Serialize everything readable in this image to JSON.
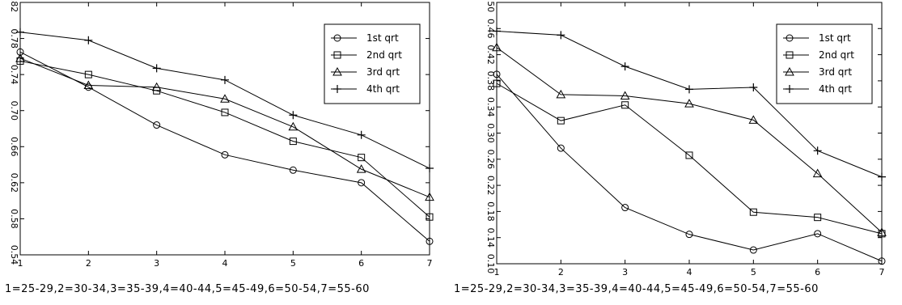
{
  "chart_data": [
    {
      "type": "line",
      "x": [
        1,
        2,
        3,
        4,
        5,
        6,
        7
      ],
      "xlim": [
        1,
        7
      ],
      "ylim": [
        0.54,
        0.82
      ],
      "yticks": [
        "0.54",
        "0.58",
        "0.62",
        "0.66",
        "0.70",
        "0.74",
        "0.78",
        "0.82"
      ],
      "xticks": [
        "1",
        "2",
        "3",
        "4",
        "5",
        "6",
        "7"
      ],
      "xlabel": "1=25-29,2=30-34,3=35-39,4=40-44,5=45-49,6=50-54,7=55-60",
      "legend_position": "top-right",
      "series": [
        {
          "name": "1st qrt",
          "marker": "circle",
          "values": [
            0.765,
            0.726,
            0.684,
            0.651,
            0.634,
            0.62,
            0.555
          ]
        },
        {
          "name": "2nd qrt",
          "marker": "square",
          "values": [
            0.755,
            0.74,
            0.722,
            0.698,
            0.666,
            0.648,
            0.582
          ]
        },
        {
          "name": "3rd qrt",
          "marker": "triangle",
          "values": [
            0.758,
            0.728,
            0.726,
            0.713,
            0.682,
            0.635,
            0.604
          ]
        },
        {
          "name": "4th qrt",
          "marker": "plus",
          "values": [
            0.787,
            0.778,
            0.747,
            0.734,
            0.695,
            0.673,
            0.636
          ]
        }
      ]
    },
    {
      "type": "line",
      "x": [
        1,
        2,
        3,
        4,
        5,
        6,
        7
      ],
      "xlim": [
        1,
        7
      ],
      "ylim": [
        0.1,
        0.5
      ],
      "yticks": [
        "0.10",
        "0.14",
        "0.18",
        "0.22",
        "0.26",
        "0.30",
        "0.34",
        "0.38",
        "0.42",
        "0.46",
        "0.50"
      ],
      "xticks": [
        "1",
        "2",
        "3",
        "4",
        "5",
        "6",
        "7"
      ],
      "xlabel": "1=25-29,2=30-34,3=35-39,4=40-44,5=45-49,6=50-54,7=55-60",
      "legend_position": "top-right",
      "series": [
        {
          "name": "1st qrt",
          "marker": "circle",
          "values": [
            0.39,
            0.277,
            0.186,
            0.145,
            0.121,
            0.146,
            0.104
          ]
        },
        {
          "name": "2nd qrt",
          "marker": "square",
          "values": [
            0.376,
            0.319,
            0.343,
            0.266,
            0.179,
            0.171,
            0.146
          ]
        },
        {
          "name": "3rd qrt",
          "marker": "triangle",
          "values": [
            0.431,
            0.359,
            0.357,
            0.345,
            0.32,
            0.238,
            0.148
          ]
        },
        {
          "name": "4th qrt",
          "marker": "plus",
          "values": [
            0.456,
            0.45,
            0.402,
            0.367,
            0.37,
            0.273,
            0.233
          ]
        }
      ]
    }
  ]
}
